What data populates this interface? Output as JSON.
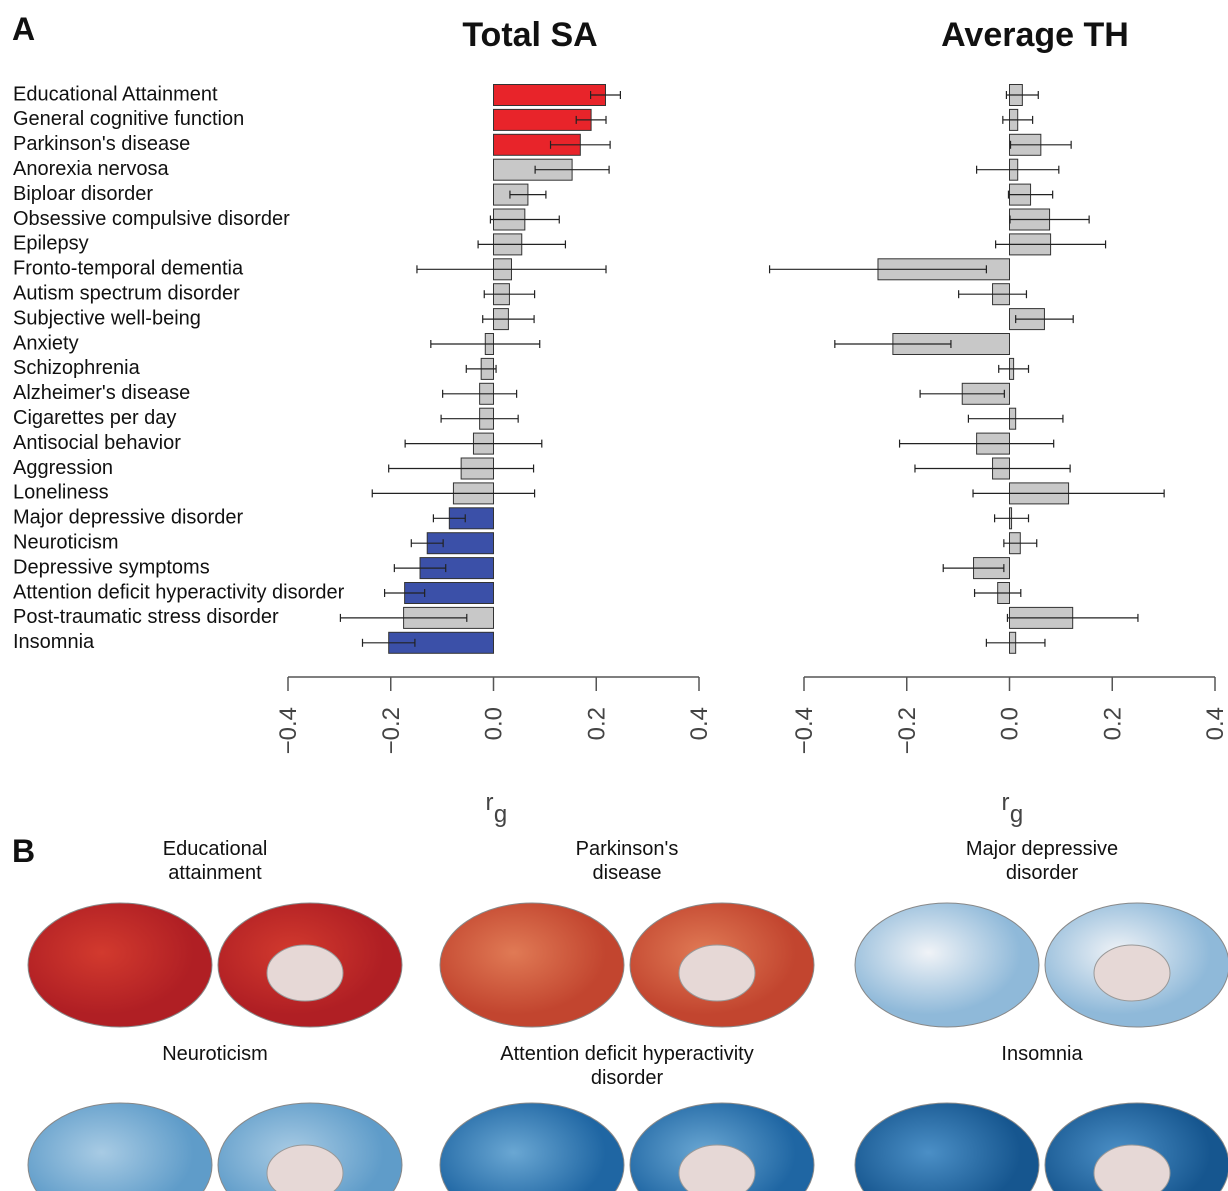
{
  "panel_labels": [
    "A",
    "B"
  ],
  "chart_data": [
    {
      "type": "hbar",
      "title": "Total SA",
      "xlabel": "r",
      "xlabel_subscript": "g",
      "categories": [
        "Educational Attainment",
        "General cognitive function",
        "Parkinson's disease",
        "Anorexia nervosa",
        "Biploar disorder",
        "Obsessive compulsive disorder",
        "Epilepsy",
        "Fronto-temporal dementia",
        "Autism spectrum disorder",
        "Subjective well-being",
        "Anxiety",
        "Schizophrenia",
        "Alzheimer's disease",
        "Cigarettes per day",
        "Antisocial behavior",
        "Aggression",
        "Loneliness",
        "Major depressive disorder",
        "Neuroticism",
        "Depressive symptoms",
        "Attention deficit hyperactivity disorder",
        "Post-traumatic stress disorder",
        "Insomnia"
      ],
      "values": [
        0.218,
        0.19,
        0.169,
        0.153,
        0.067,
        0.061,
        0.055,
        0.035,
        0.031,
        0.029,
        -0.016,
        -0.024,
        -0.027,
        -0.027,
        -0.039,
        -0.063,
        -0.078,
        -0.086,
        -0.129,
        -0.143,
        -0.173,
        -0.175,
        -0.204
      ],
      "errors": [
        0.029,
        0.029,
        0.058,
        0.072,
        0.035,
        0.067,
        0.085,
        0.184,
        0.049,
        0.05,
        0.106,
        0.029,
        0.072,
        0.075,
        0.133,
        0.141,
        0.158,
        0.031,
        0.031,
        0.05,
        0.039,
        0.123,
        0.051
      ],
      "colors": [
        "#e8242a",
        "#e8242a",
        "#e8242a",
        "#c8c8c8",
        "#c8c8c8",
        "#c8c8c8",
        "#c8c8c8",
        "#c8c8c8",
        "#c8c8c8",
        "#c8c8c8",
        "#c8c8c8",
        "#c8c8c8",
        "#c8c8c8",
        "#c8c8c8",
        "#c8c8c8",
        "#c8c8c8",
        "#c8c8c8",
        "#3b50a8",
        "#3b50a8",
        "#3b50a8",
        "#3b50a8",
        "#c8c8c8",
        "#3b50a8"
      ],
      "xlim": [
        -0.4,
        0.4
      ],
      "xticks": [
        {
          "value": -0.4,
          "label": "−0.4"
        },
        {
          "value": -0.2,
          "label": "−0.2"
        },
        {
          "value": 0,
          "label": "0.0"
        },
        {
          "value": 0.2,
          "label": "0.2"
        },
        {
          "value": 0.4,
          "label": "0.4"
        }
      ]
    },
    {
      "type": "hbar",
      "title": "Average TH",
      "xlabel": "r",
      "xlabel_subscript": "g",
      "values": [
        0.025,
        0.016,
        0.061,
        0.016,
        0.041,
        0.078,
        0.08,
        -0.256,
        -0.033,
        0.068,
        -0.227,
        0.008,
        -0.092,
        0.012,
        -0.064,
        -0.033,
        0.115,
        0.004,
        0.021,
        -0.07,
        -0.023,
        0.123,
        0.012
      ],
      "errors": [
        0.031,
        0.029,
        0.059,
        0.08,
        0.043,
        0.077,
        0.107,
        0.211,
        0.066,
        0.056,
        0.113,
        0.029,
        0.082,
        0.092,
        0.15,
        0.151,
        0.186,
        0.033,
        0.032,
        0.059,
        0.045,
        0.127,
        0.057
      ],
      "color": "#c8c8c8",
      "xlim": [
        -0.4,
        0.4
      ],
      "xticks": [
        {
          "value": -0.4,
          "label": "−0.4"
        },
        {
          "value": -0.2,
          "label": "−0.2"
        },
        {
          "value": 0,
          "label": "0.0"
        },
        {
          "value": 0.2,
          "label": "0.2"
        },
        {
          "value": 0.4,
          "label": "0.4"
        }
      ]
    }
  ],
  "brain_maps": [
    {
      "title_lines": [
        "Educational",
        "attainment"
      ]
    },
    {
      "title_lines": [
        "Parkinson's",
        "disease"
      ]
    },
    {
      "title_lines": [
        "Major depressive",
        "disorder"
      ]
    },
    {
      "title_lines": [
        "Neuroticism"
      ]
    },
    {
      "title_lines": [
        "Attention deficit hyperactivity",
        "disorder"
      ]
    },
    {
      "title_lines": [
        "Insomnia"
      ]
    }
  ]
}
